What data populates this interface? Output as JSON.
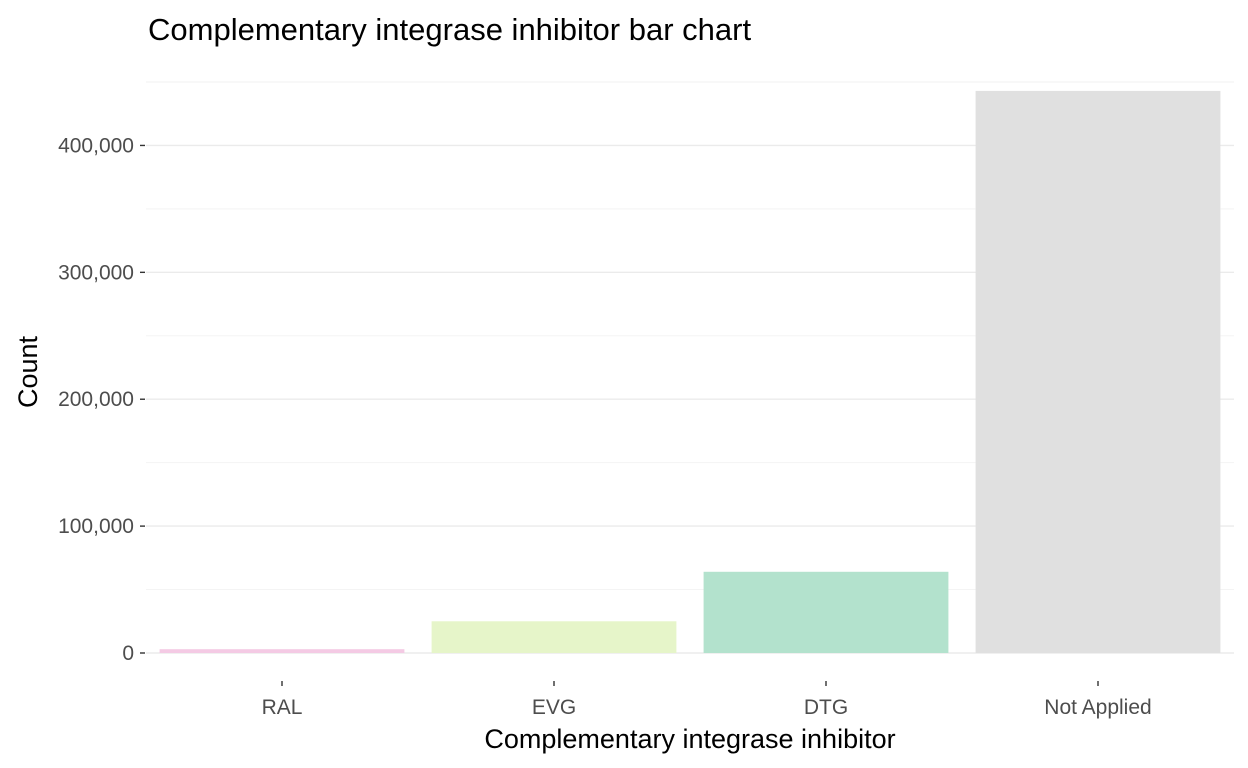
{
  "chart_data": {
    "type": "bar",
    "title": "Complementary integrase inhibitor bar chart",
    "xlabel": "Complementary integrase inhibitor",
    "ylabel": "Count",
    "categories": [
      "RAL",
      "EVG",
      "DTG",
      "Not Applied"
    ],
    "values": [
      3000,
      25000,
      64000,
      443000
    ],
    "colors": [
      "#f4cae4",
      "#e6f5c9",
      "#b3e2cd",
      "#e0e0e0"
    ],
    "ylim": [
      0,
      450000
    ],
    "yticks": [
      0,
      100000,
      200000,
      300000,
      400000
    ],
    "ytick_labels": [
      "0",
      "100,000",
      "200,000",
      "300,000",
      "400,000"
    ],
    "grid": true,
    "legend": "none"
  }
}
